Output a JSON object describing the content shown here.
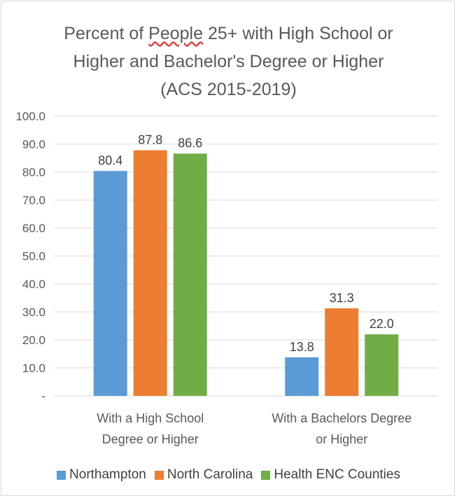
{
  "chart_data": {
    "type": "bar",
    "title_lines": [
      [
        "Percent of ",
        "People",
        " 25+ with High School or"
      ],
      [
        "Higher and Bachelor's Degree or Higher"
      ],
      [
        "(ACS 2015-2019)"
      ]
    ],
    "categories": [
      [
        "With a High School",
        "Degree or Higher"
      ],
      [
        "With a Bachelors Degree",
        "or Higher"
      ]
    ],
    "series": [
      {
        "name": "Northampton",
        "color": "#5b9bd5",
        "values": [
          80.4,
          13.8
        ]
      },
      {
        "name": "North Carolina",
        "color": "#ed7d31",
        "values": [
          87.8,
          31.3
        ]
      },
      {
        "name": "Health ENC Counties",
        "color": "#70ad47",
        "values": [
          86.6,
          22.0
        ]
      }
    ],
    "ylim": [
      0,
      100
    ],
    "yticks": [
      "-",
      "10.0",
      "20.0",
      "30.0",
      "40.0",
      "50.0",
      "60.0",
      "70.0",
      "80.0",
      "90.0",
      "100.0"
    ],
    "data_labels": [
      [
        "80.4",
        "13.8"
      ],
      [
        "87.8",
        "31.3"
      ],
      [
        "86.6",
        "22.0"
      ]
    ],
    "grid": true,
    "legend_position": "bottom"
  }
}
